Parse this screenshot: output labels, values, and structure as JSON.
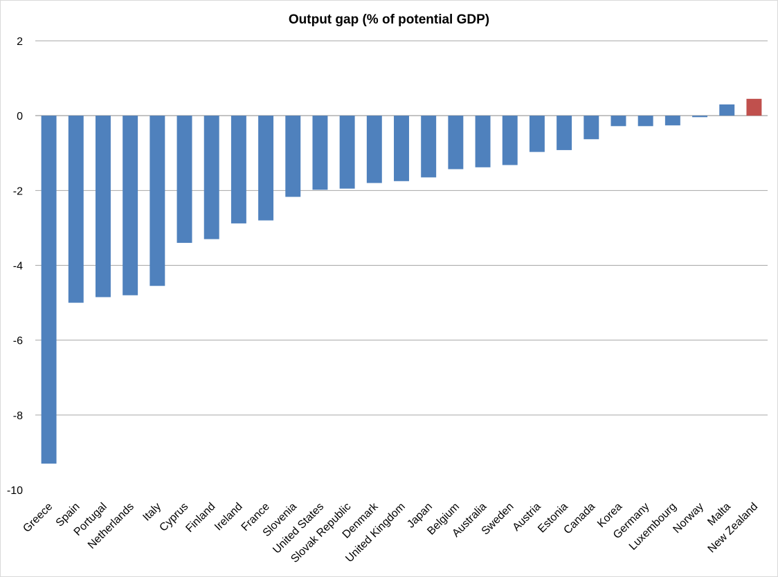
{
  "chart_data": {
    "type": "bar",
    "title": "Output gap (% of potential GDP)",
    "xlabel": "",
    "ylabel": "",
    "ylim": [
      -10,
      2
    ],
    "yticks": [
      2,
      0,
      -2,
      -4,
      -6,
      -8,
      -10
    ],
    "grid": true,
    "categories": [
      "Greece",
      "Spain",
      "Portugal",
      "Netherlands",
      "Italy",
      "Cyprus",
      "Finland",
      "Ireland",
      "France",
      "Slovenia",
      "United States",
      "Slovak Republic",
      "Denmark",
      "United Kingdom",
      "Japan",
      "Belgium",
      "Australia",
      "Sweden",
      "Austria",
      "Estonia",
      "Canada",
      "Korea",
      "Germany",
      "Luxembourg",
      "Norway",
      "Malta",
      "New Zealand"
    ],
    "values": [
      -9.3,
      -5.0,
      -4.85,
      -4.8,
      -4.55,
      -3.4,
      -3.3,
      -2.88,
      -2.8,
      -2.17,
      -1.98,
      -1.95,
      -1.8,
      -1.75,
      -1.65,
      -1.43,
      -1.38,
      -1.32,
      -0.97,
      -0.92,
      -0.63,
      -0.28,
      -0.28,
      -0.26,
      -0.04,
      0.3,
      0.45
    ],
    "colors": {
      "default": "#4f81bd",
      "highlight": "#c0504d",
      "highlight_category": "New Zealand"
    }
  }
}
